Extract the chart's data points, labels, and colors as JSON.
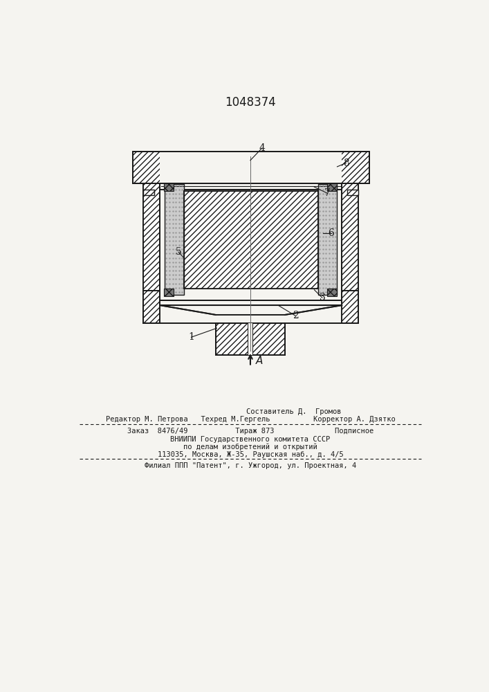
{
  "patent_number": "1048374",
  "bg_color": "#f5f4f0",
  "line_color": "#1a1a1a",
  "footnote_lines": [
    "                    Составитель Д.  Громов",
    "Редактор М. Петрова   Техред М.Гергель          Корректор А. Дзятко",
    "Заказ  8476/49           Тираж 873              Подписное",
    "ВНИИПИ Государственного комитета СССР",
    "по делам изобретений и открытий",
    "113035, Москва, Ж-35, Раушская наб., д. 4/5",
    "Филиал ППП \"Патент\", г. Ужгород, ул. Проектная, 4"
  ],
  "label_A": "A"
}
